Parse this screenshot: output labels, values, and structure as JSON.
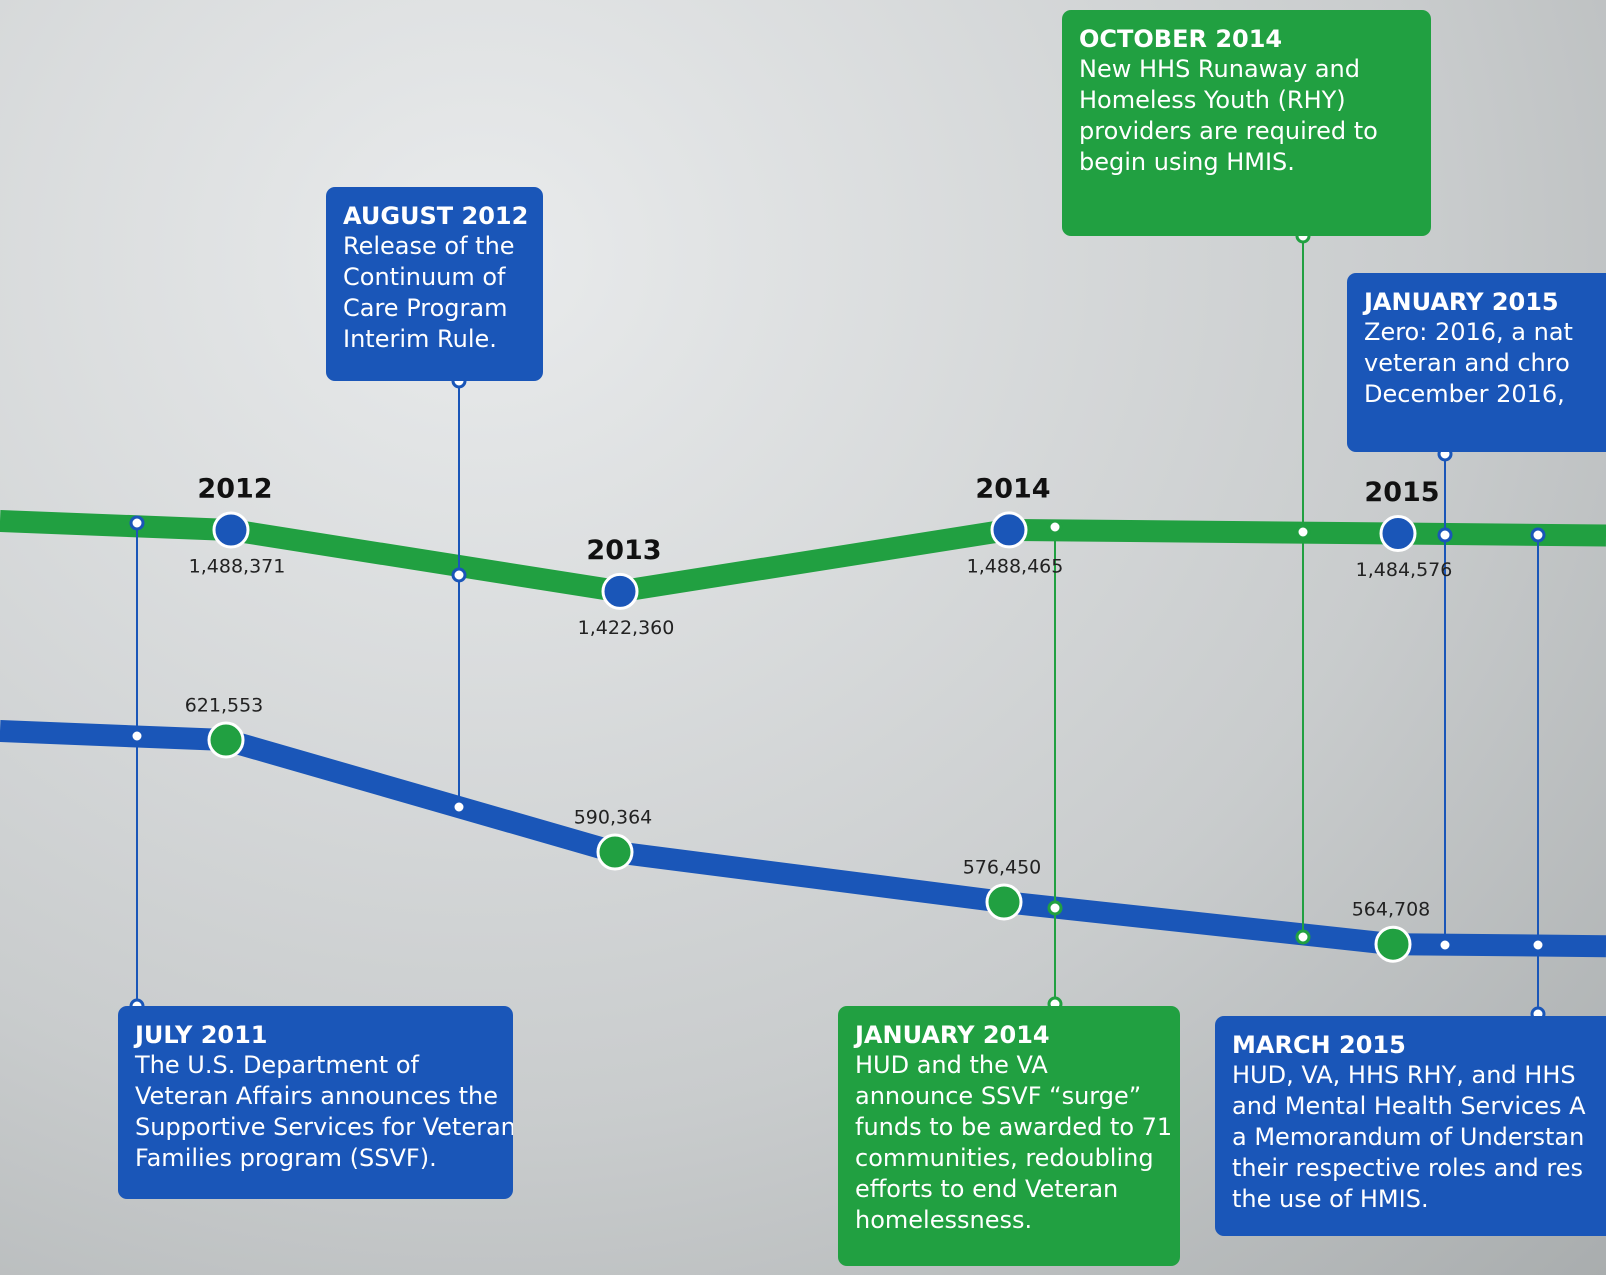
{
  "chart_data": {
    "type": "line",
    "categories": [
      "2012",
      "2013",
      "2014",
      "2015"
    ],
    "series": [
      {
        "color": "#21a041",
        "marker_color": "#1a56b8",
        "values": [
          1488371,
          1422360,
          1488465,
          1484576
        ],
        "value_labels": [
          "1,488,371",
          "1,422,360",
          "1,488,465",
          "1,484,576"
        ]
      },
      {
        "color": "#1a56b8",
        "marker_color": "#21a041",
        "axis": "y2",
        "values": [
          621553,
          590364,
          576450,
          564708
        ],
        "value_labels": [
          "621,553",
          "590,364",
          "576,450",
          "564,708"
        ]
      }
    ],
    "ylim": [
      687500,
      2058100
    ],
    "y2lim": [
      472600,
      827600
    ],
    "annotations": [
      {
        "title": "AUGUST 2012",
        "color": "#1a56b8",
        "lines": [
          "Release of the",
          "Continuum of",
          "Care Program",
          "Interim Rule."
        ]
      },
      {
        "title": "OCTOBER 2014",
        "color": "#21a041",
        "lines": [
          "New HHS Runaway and",
          "Homeless Youth (RHY)",
          "providers are required to",
          "begin using HMIS."
        ]
      },
      {
        "title": "JANUARY 2015",
        "color": "#1a56b8",
        "lines": [
          "Zero: 2016, a nat",
          "veteran and chro",
          "December 2016,"
        ]
      },
      {
        "title": "JULY 2011",
        "color": "#1a56b8",
        "lines": [
          "The U.S. Department of",
          "Veteran Affairs announces the",
          "Supportive Services for Veteran",
          "Families program (SSVF)."
        ]
      },
      {
        "title": "JANUARY 2014",
        "color": "#21a041",
        "lines": [
          "HUD and the VA",
          "announce SSVF “surge”",
          "funds to be awarded to 71",
          "communities, redoubling",
          "efforts to end Veteran",
          "homelessness."
        ]
      },
      {
        "title": "MARCH 2015",
        "color": "#1a56b8",
        "lines": [
          "HUD, VA, HHS RHY, and HHS",
          "and Mental Health Services A",
          "a Memorandum of Understan",
          "their respective roles and res",
          "the use of HMIS."
        ]
      }
    ]
  }
}
